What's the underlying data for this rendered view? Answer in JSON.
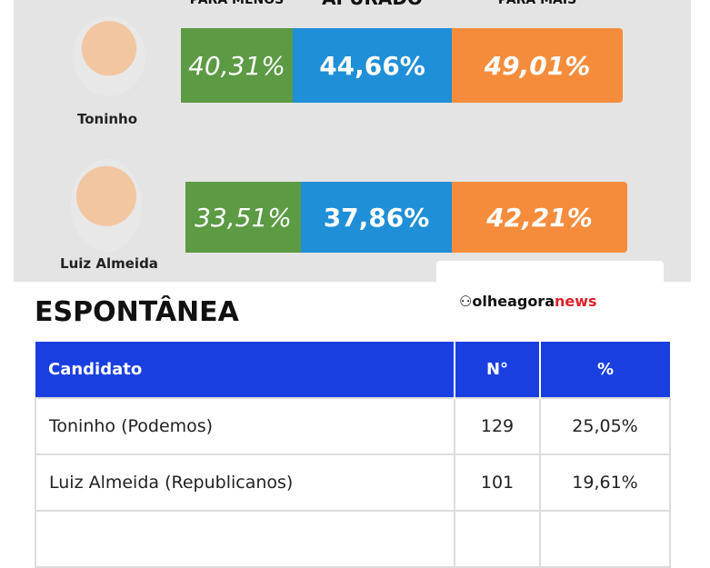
{
  "header": {
    "columns": [
      "PARA MENOS",
      "APURADO",
      "PARA MAIS"
    ]
  },
  "candidates": [
    {
      "name": "Toninho",
      "values": [
        "40,31%",
        "44,66%",
        "49,01%"
      ]
    },
    {
      "name": "Luiz Almeida",
      "values": [
        "33,51%",
        "37,86%",
        "42,21%"
      ]
    }
  ],
  "logo": {
    "part1": "olheagora",
    "part2": "news"
  },
  "section_title": "ESPONTÂNEA",
  "table": {
    "headers": [
      "Candidato",
      "N°",
      "%"
    ],
    "rows": [
      [
        "Toninho (Podemos)",
        "129",
        "25,05%"
      ],
      [
        "Luiz Almeida (Republicanos)",
        "101",
        "19,61%"
      ]
    ]
  }
}
